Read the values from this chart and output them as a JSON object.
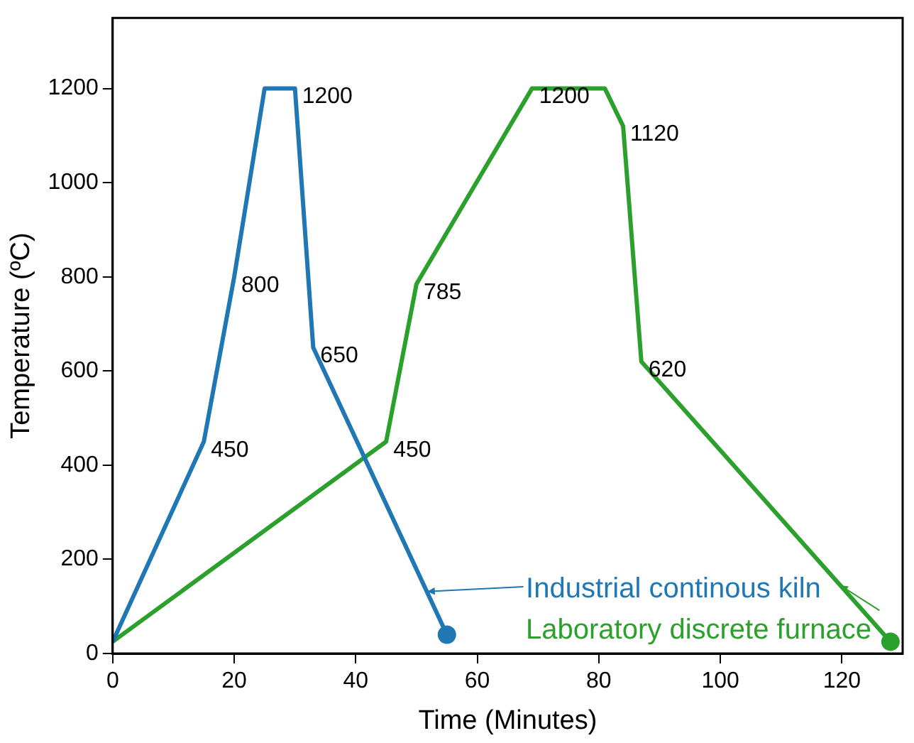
{
  "chart_data": {
    "type": "line",
    "xlabel": "Time (Minutes)",
    "ylabel": "Temperature (ºC)",
    "xlim": [
      0,
      130
    ],
    "xticks": [
      0,
      20,
      40,
      60,
      80,
      100,
      120
    ],
    "ylim": [
      0,
      1350
    ],
    "yticks": [
      0,
      200,
      400,
      600,
      800,
      1000,
      1200
    ],
    "grid": false,
    "legend": "bottom right",
    "line_style": "solid",
    "series": [
      {
        "name": "Industrial continous kiln",
        "color": "#1f77b4",
        "x": [
          0,
          15,
          20,
          25,
          30,
          33,
          55
        ],
        "values": [
          25,
          450,
          800,
          1200,
          1200,
          650,
          40
        ]
      },
      {
        "name": "Laboratory discrete furnace",
        "color": "#2ca02c",
        "x": [
          0,
          45,
          50,
          69,
          81,
          84,
          87,
          128
        ],
        "values": [
          25,
          450,
          785,
          1200,
          1200,
          1120,
          620,
          25
        ]
      }
    ],
    "annotations": [
      {
        "text": "1200",
        "x": 30,
        "y": 1200
      },
      {
        "text": "800",
        "x": 20,
        "y": 800
      },
      {
        "text": "650",
        "x": 33,
        "y": 650
      },
      {
        "text": "450",
        "x": 15,
        "y": 450
      },
      {
        "text": "785",
        "x": 50,
        "y": 785
      },
      {
        "text": "450",
        "x": 45,
        "y": 450
      },
      {
        "text": "1200",
        "x": 69,
        "y": 1200
      },
      {
        "text": "1120",
        "x": 84,
        "y": 1120
      },
      {
        "text": "620",
        "x": 87,
        "y": 620
      }
    ]
  }
}
